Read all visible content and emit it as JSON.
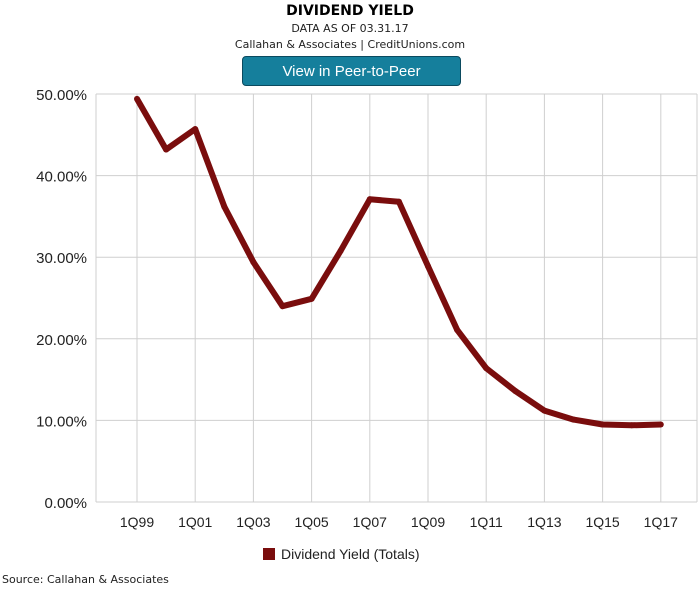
{
  "header": {
    "title": "DIVIDEND YIELD",
    "subtitle_date": "DATA AS OF 03.31.17",
    "subtitle_source": "Callahan & Associates | CreditUnions.com",
    "button_label": "View in Peer-to-Peer"
  },
  "legend": {
    "label": "Dividend Yield (Totals)"
  },
  "footer": {
    "source": "Source: Callahan & Associates"
  },
  "colors": {
    "series": "#7a0d0d",
    "button": "#157f9c",
    "grid": "#cfcfcf"
  },
  "chart_data": {
    "type": "line",
    "title": "DIVIDEND YIELD",
    "xlabel": "",
    "ylabel": "",
    "ylim": [
      0,
      50
    ],
    "yticks": [
      "0.00%",
      "10.00%",
      "20.00%",
      "30.00%",
      "40.00%",
      "50.00%"
    ],
    "x": [
      "1Q99",
      "1Q00",
      "1Q01",
      "1Q02",
      "1Q03",
      "1Q04",
      "1Q05",
      "1Q06",
      "1Q07",
      "1Q08",
      "1Q09",
      "1Q10",
      "1Q11",
      "1Q12",
      "1Q13",
      "1Q14",
      "1Q15",
      "1Q16",
      "1Q17"
    ],
    "xtick_labels": [
      "1Q99",
      "1Q01",
      "1Q03",
      "1Q05",
      "1Q07",
      "1Q09",
      "1Q11",
      "1Q13",
      "1Q15",
      "1Q17"
    ],
    "series": [
      {
        "name": "Dividend Yield (Totals)",
        "values": [
          49.4,
          43.2,
          45.7,
          36.2,
          29.4,
          24.0,
          24.9,
          30.8,
          37.1,
          36.8,
          28.9,
          21.1,
          16.4,
          13.6,
          11.2,
          10.1,
          9.5,
          9.4,
          9.5
        ]
      }
    ],
    "grid": true,
    "legend_position": "bottom"
  }
}
